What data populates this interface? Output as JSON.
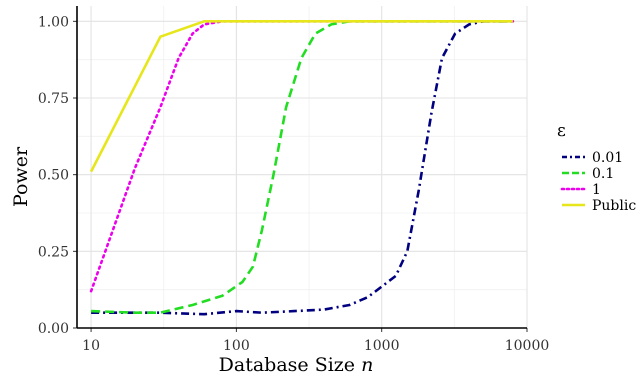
{
  "chart_data": {
    "type": "line",
    "xlabel": "Database Size",
    "xlabel_var": "n",
    "ylabel": "Power",
    "x_scale": "log10",
    "xlim": [
      8,
      10000
    ],
    "ylim": [
      0,
      1.05
    ],
    "x_ticks": [
      10,
      100,
      1000,
      10000
    ],
    "x_tick_labels": [
      "10",
      "100",
      "1000",
      "10000"
    ],
    "y_ticks": [
      0,
      0.25,
      0.5,
      0.75,
      1.0
    ],
    "y_tick_labels": [
      "0.00",
      "0.25",
      "0.50",
      "0.75",
      "1.00"
    ],
    "grid": true,
    "legend": {
      "title": "ε",
      "position": "right"
    },
    "series": [
      {
        "name": "0.01",
        "color": "#000080",
        "dash": "dashdot",
        "x": [
          10,
          20,
          30,
          60,
          100,
          150,
          250,
          400,
          600,
          800,
          1000,
          1250,
          1500,
          1800,
          2200,
          2600,
          3200,
          4000,
          5000,
          8000
        ],
        "y": [
          0.05,
          0.05,
          0.05,
          0.045,
          0.055,
          0.05,
          0.055,
          0.06,
          0.075,
          0.1,
          0.135,
          0.17,
          0.25,
          0.45,
          0.7,
          0.88,
          0.96,
          0.99,
          1.0,
          1.0
        ]
      },
      {
        "name": "0.1",
        "color": "#22dd22",
        "dash": "dashed",
        "x": [
          10,
          20,
          30,
          50,
          80,
          110,
          130,
          150,
          180,
          220,
          280,
          350,
          450,
          600,
          800,
          1000,
          2000,
          5000,
          8000
        ],
        "y": [
          0.055,
          0.05,
          0.05,
          0.075,
          0.105,
          0.15,
          0.2,
          0.32,
          0.5,
          0.72,
          0.88,
          0.96,
          0.99,
          1.0,
          1.0,
          1.0,
          1.0,
          1.0,
          1.0
        ]
      },
      {
        "name": "1",
        "color": "#ee00ee",
        "dash": "dotted",
        "x": [
          10,
          20,
          30,
          40,
          50,
          60,
          80,
          100,
          1000,
          8000
        ],
        "y": [
          0.12,
          0.52,
          0.72,
          0.88,
          0.96,
          0.99,
          1.0,
          1.0,
          1.0,
          1.0
        ]
      },
      {
        "name": "Public",
        "color": "#e6e61a",
        "dash": "solid",
        "x": [
          10,
          30,
          60,
          100,
          1000,
          8000
        ],
        "y": [
          0.51,
          0.95,
          1.0,
          1.0,
          1.0,
          1.0
        ]
      }
    ]
  }
}
